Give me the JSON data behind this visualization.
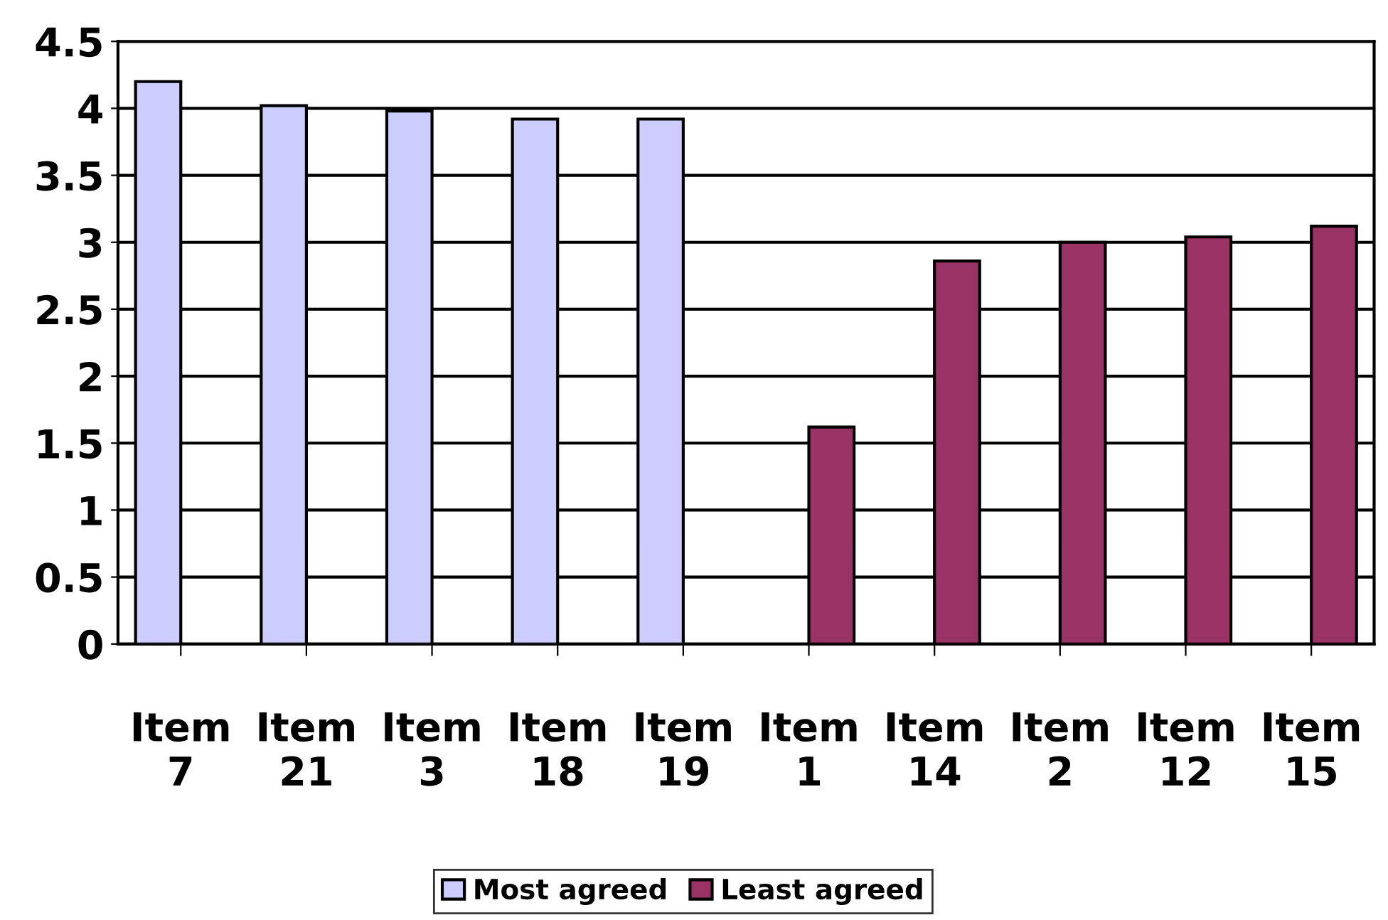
{
  "chart_data": {
    "type": "bar",
    "categories": [
      "Item\n7",
      "Item\n21",
      "Item\n3",
      "Item\n18",
      "Item\n19",
      "Item\n1",
      "Item\n14",
      "Item\n2",
      "Item\n12",
      "Item\n15"
    ],
    "series": [
      {
        "name": "Most agreed",
        "color": "#ccccff",
        "values": [
          4.2,
          4.02,
          3.98,
          3.92,
          3.92,
          null,
          null,
          null,
          null,
          null
        ]
      },
      {
        "name": "Least agreed",
        "color": "#993366",
        "values": [
          null,
          null,
          null,
          null,
          null,
          1.62,
          2.86,
          3.0,
          3.04,
          3.12
        ]
      }
    ],
    "ylim": [
      0,
      4.5
    ],
    "yticks": [
      0,
      0.5,
      1,
      1.5,
      2,
      2.5,
      3,
      3.5,
      4,
      4.5
    ],
    "grid": "y",
    "legend": "bottom"
  }
}
